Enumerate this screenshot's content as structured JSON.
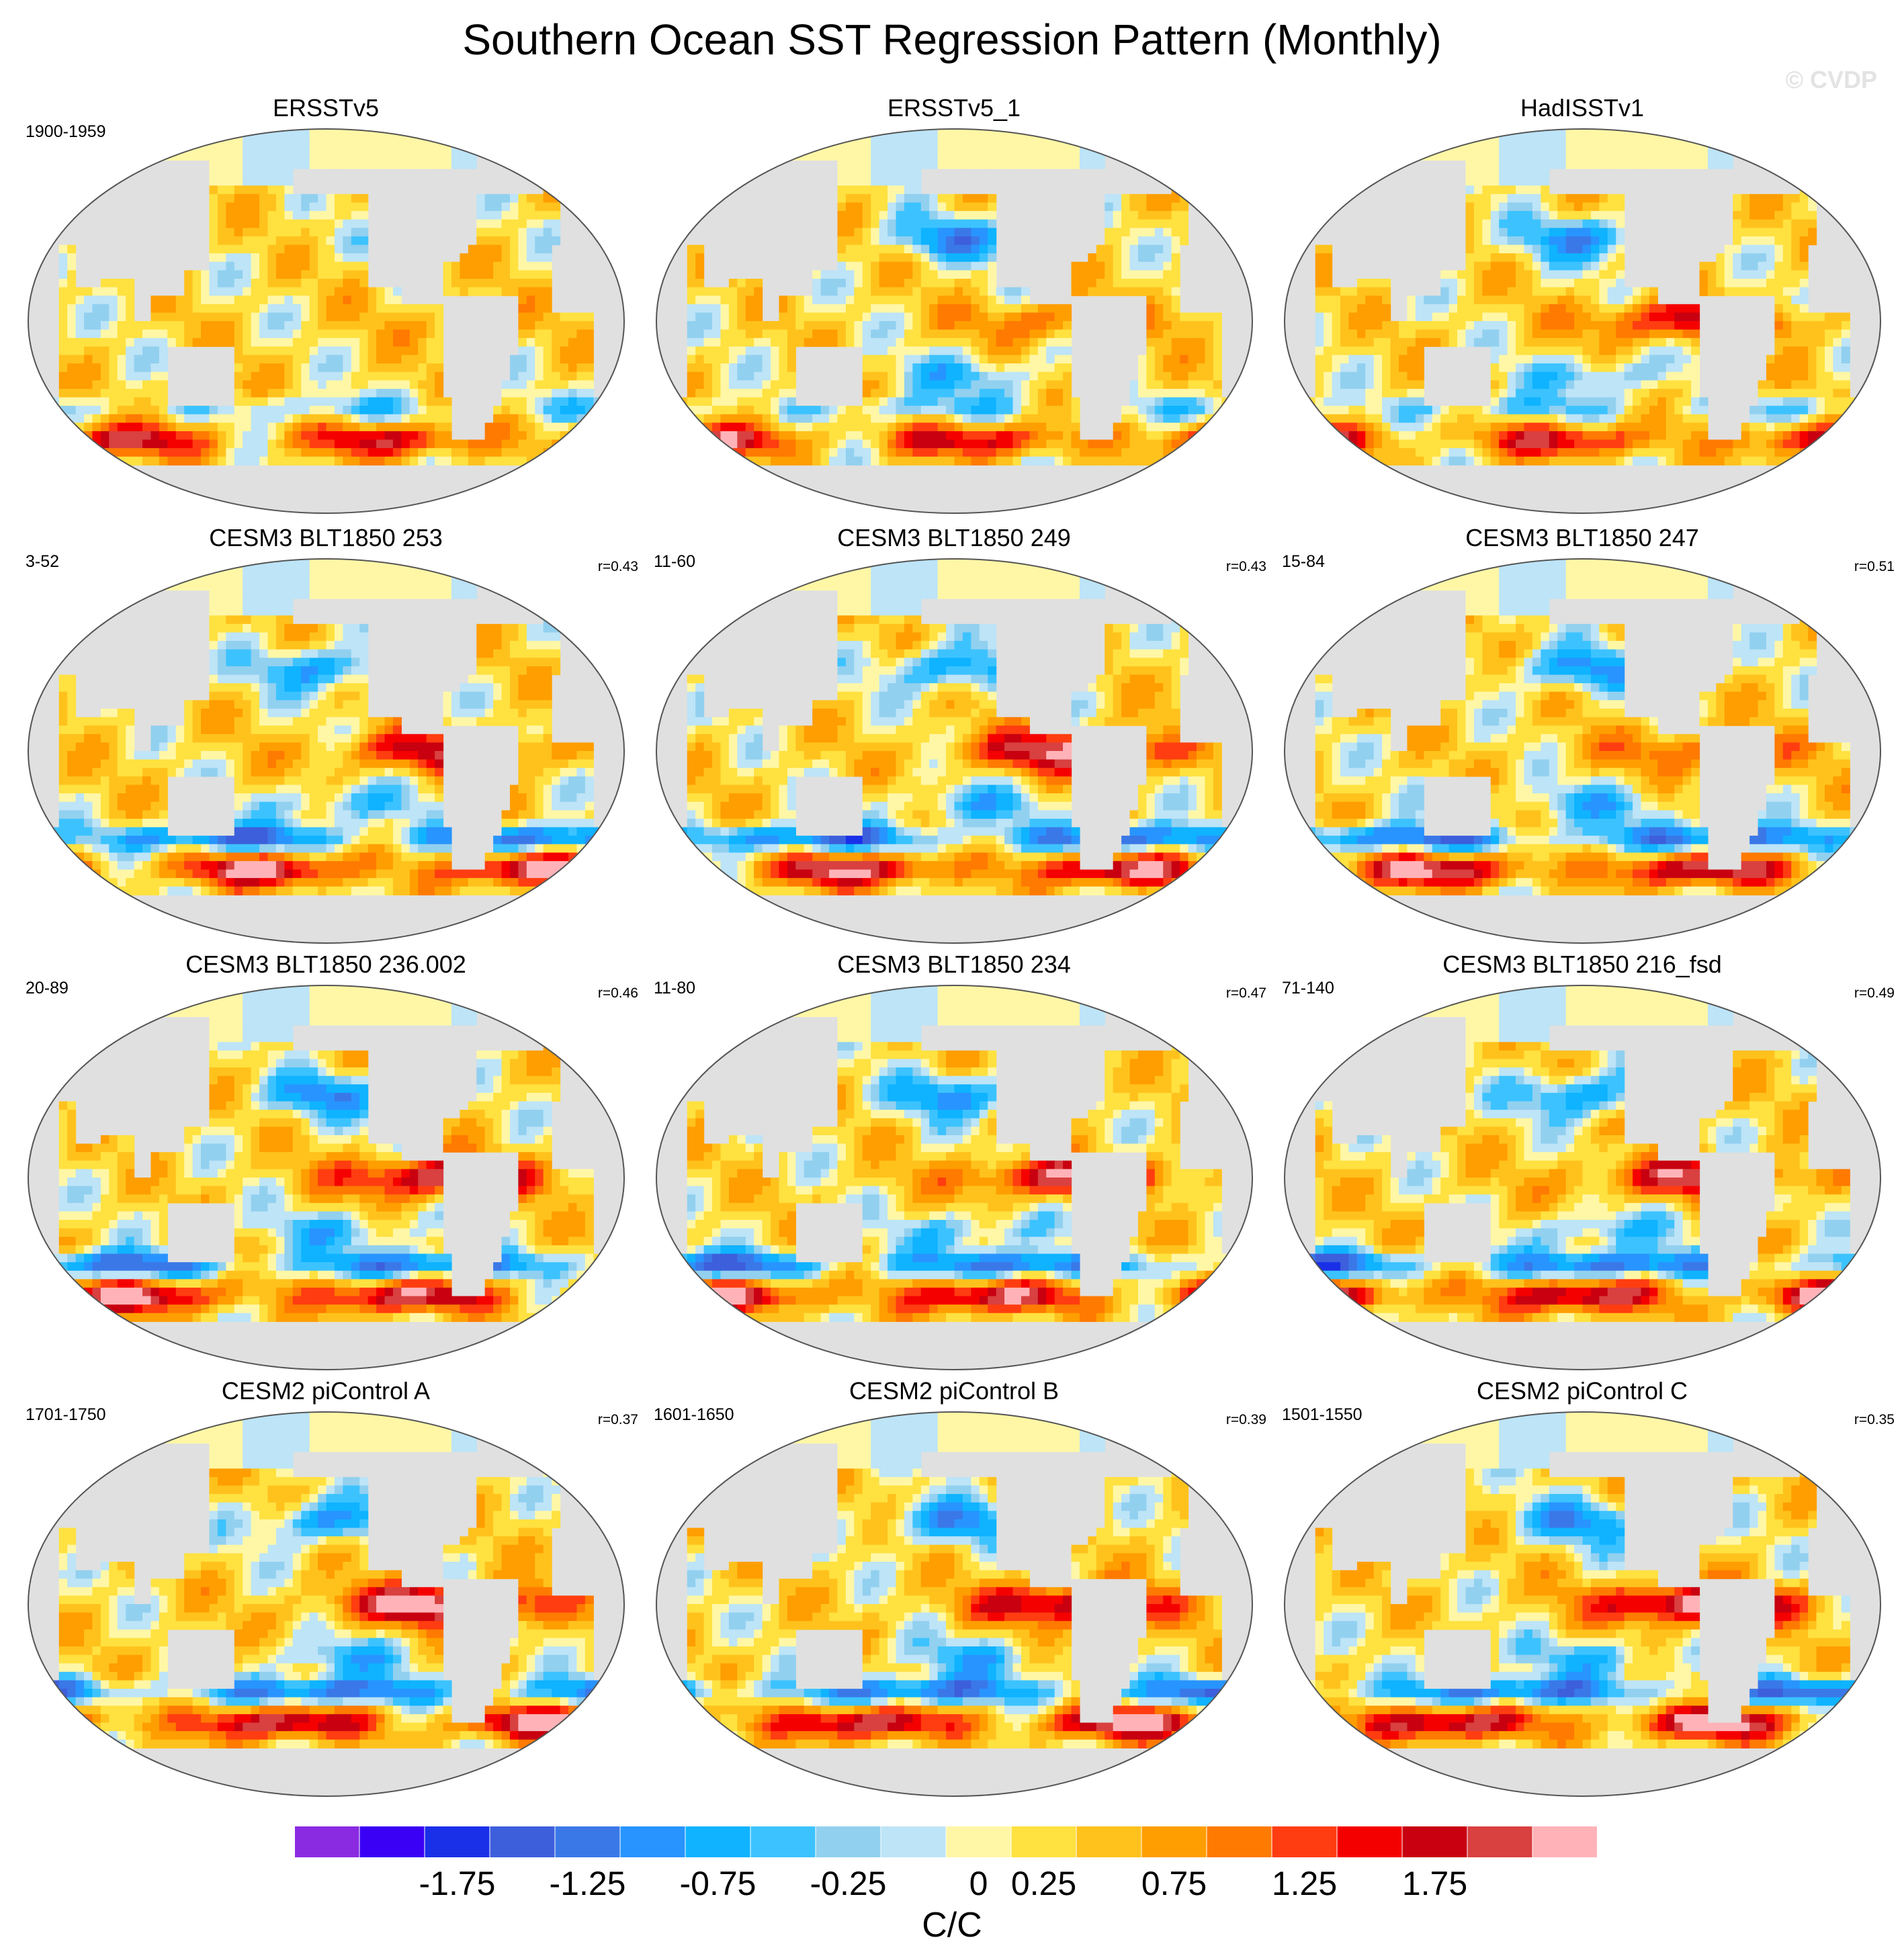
{
  "title": "Southern Ocean SST Regression Pattern (Monthly)",
  "watermark": "© CVDP",
  "units_label": "C/C",
  "chart_data": {
    "type": "heatmap",
    "title": "Southern Ocean SST Regression Pattern (Monthly)",
    "projection": "Robinson (Pacific-centered)",
    "units": "C/C",
    "colorbar": {
      "levels": [
        -2.25,
        -2.0,
        -1.75,
        -1.5,
        -1.25,
        -1.0,
        -0.75,
        -0.5,
        -0.25,
        -0.1,
        0.1,
        0.25,
        0.5,
        0.75,
        1.0,
        1.25,
        1.5,
        1.75,
        2.0,
        2.25
      ],
      "tick_labels": [
        "-1.75",
        "-1.25",
        "-0.75",
        "-0.25",
        "0",
        "0.25",
        "0.75",
        "1.25",
        "1.75"
      ],
      "colors": [
        "#8a2be2",
        "#3a00f5",
        "#1a30e8",
        "#3d5fdc",
        "#3a78e8",
        "#2894ff",
        "#0fb3ff",
        "#3cc3ff",
        "#92d0ef",
        "#bde4f7",
        "#fff7a6",
        "#ffe140",
        "#ffc21c",
        "#ff9e00",
        "#ff7a00",
        "#ff3d10",
        "#f50000",
        "#c80010",
        "#d94040",
        "#ffb3b8"
      ]
    },
    "panels": [
      {
        "title": "ERSSTv5",
        "period": "1900-1959",
        "r": ""
      },
      {
        "title": "ERSSTv5_1",
        "period": "",
        "r": ""
      },
      {
        "title": "HadISSTv1",
        "period": "",
        "r": ""
      },
      {
        "title": "CESM3 BLT1850 253",
        "period": "3-52",
        "r": "r=0.43"
      },
      {
        "title": "CESM3 BLT1850 249",
        "period": "11-60",
        "r": "r=0.43"
      },
      {
        "title": "CESM3 BLT1850 247",
        "period": "15-84",
        "r": "r=0.51"
      },
      {
        "title": "CESM3 BLT1850 236.002",
        "period": "20-89",
        "r": "r=0.46"
      },
      {
        "title": "CESM3 BLT1850 234",
        "period": "11-80",
        "r": "r=0.47"
      },
      {
        "title": "CESM3 BLT1850 216_fsd",
        "period": "71-140",
        "r": "r=0.49"
      },
      {
        "title": "CESM2 piControl A",
        "period": "1701-1750",
        "r": "r=0.37"
      },
      {
        "title": "CESM2 piControl B",
        "period": "1601-1650",
        "r": "r=0.39"
      },
      {
        "title": "CESM2 piControl C",
        "period": "1501-1550",
        "r": "r=0.35"
      }
    ]
  }
}
